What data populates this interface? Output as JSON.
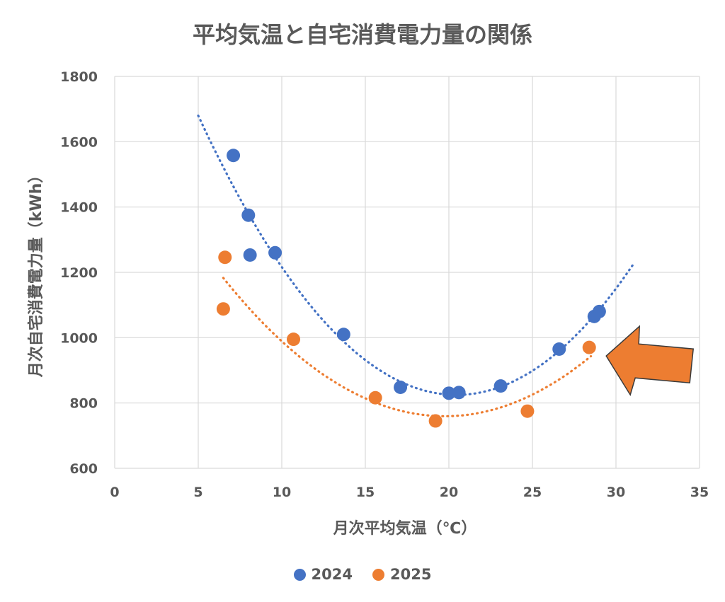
{
  "chart_data": {
    "type": "scatter",
    "title": "平均気温と自宅消費電力量の関係",
    "xlabel": "月次平均気温（℃）",
    "ylabel": "月次自宅消費電力量（kWh）",
    "xlim": [
      0,
      35
    ],
    "ylim": [
      600,
      1800
    ],
    "xticks": [
      "0",
      "5",
      "10",
      "15",
      "20",
      "25",
      "30",
      "35"
    ],
    "yticks": [
      "600",
      "800",
      "1000",
      "1200",
      "1400",
      "1600",
      "1800"
    ],
    "grid": true,
    "legend_position": "bottom",
    "trendline": "quadratic",
    "series": [
      {
        "name": "2024",
        "color": "#4472C4",
        "points": [
          [
            7.1,
            1558
          ],
          [
            8.0,
            1375
          ],
          [
            8.1,
            1253
          ],
          [
            9.6,
            1260
          ],
          [
            13.7,
            1010
          ],
          [
            17.1,
            848
          ],
          [
            20.0,
            830
          ],
          [
            20.6,
            832
          ],
          [
            23.1,
            852
          ],
          [
            26.6,
            965
          ],
          [
            28.7,
            1065
          ],
          [
            29.0,
            1080
          ]
        ],
        "trend_range": [
          5.0,
          31.0
        ]
      },
      {
        "name": "2025",
        "color": "#ED7D31",
        "points": [
          [
            6.6,
            1246
          ],
          [
            6.5,
            1088
          ],
          [
            10.7,
            995
          ],
          [
            15.6,
            816
          ],
          [
            19.2,
            745
          ],
          [
            24.7,
            775
          ],
          [
            28.4,
            970
          ]
        ],
        "trend_range": [
          6.5,
          28.5
        ]
      }
    ],
    "annotation": {
      "type": "arrow",
      "color": "#ED7D31",
      "points_to": [
        28.4,
        970
      ]
    }
  }
}
